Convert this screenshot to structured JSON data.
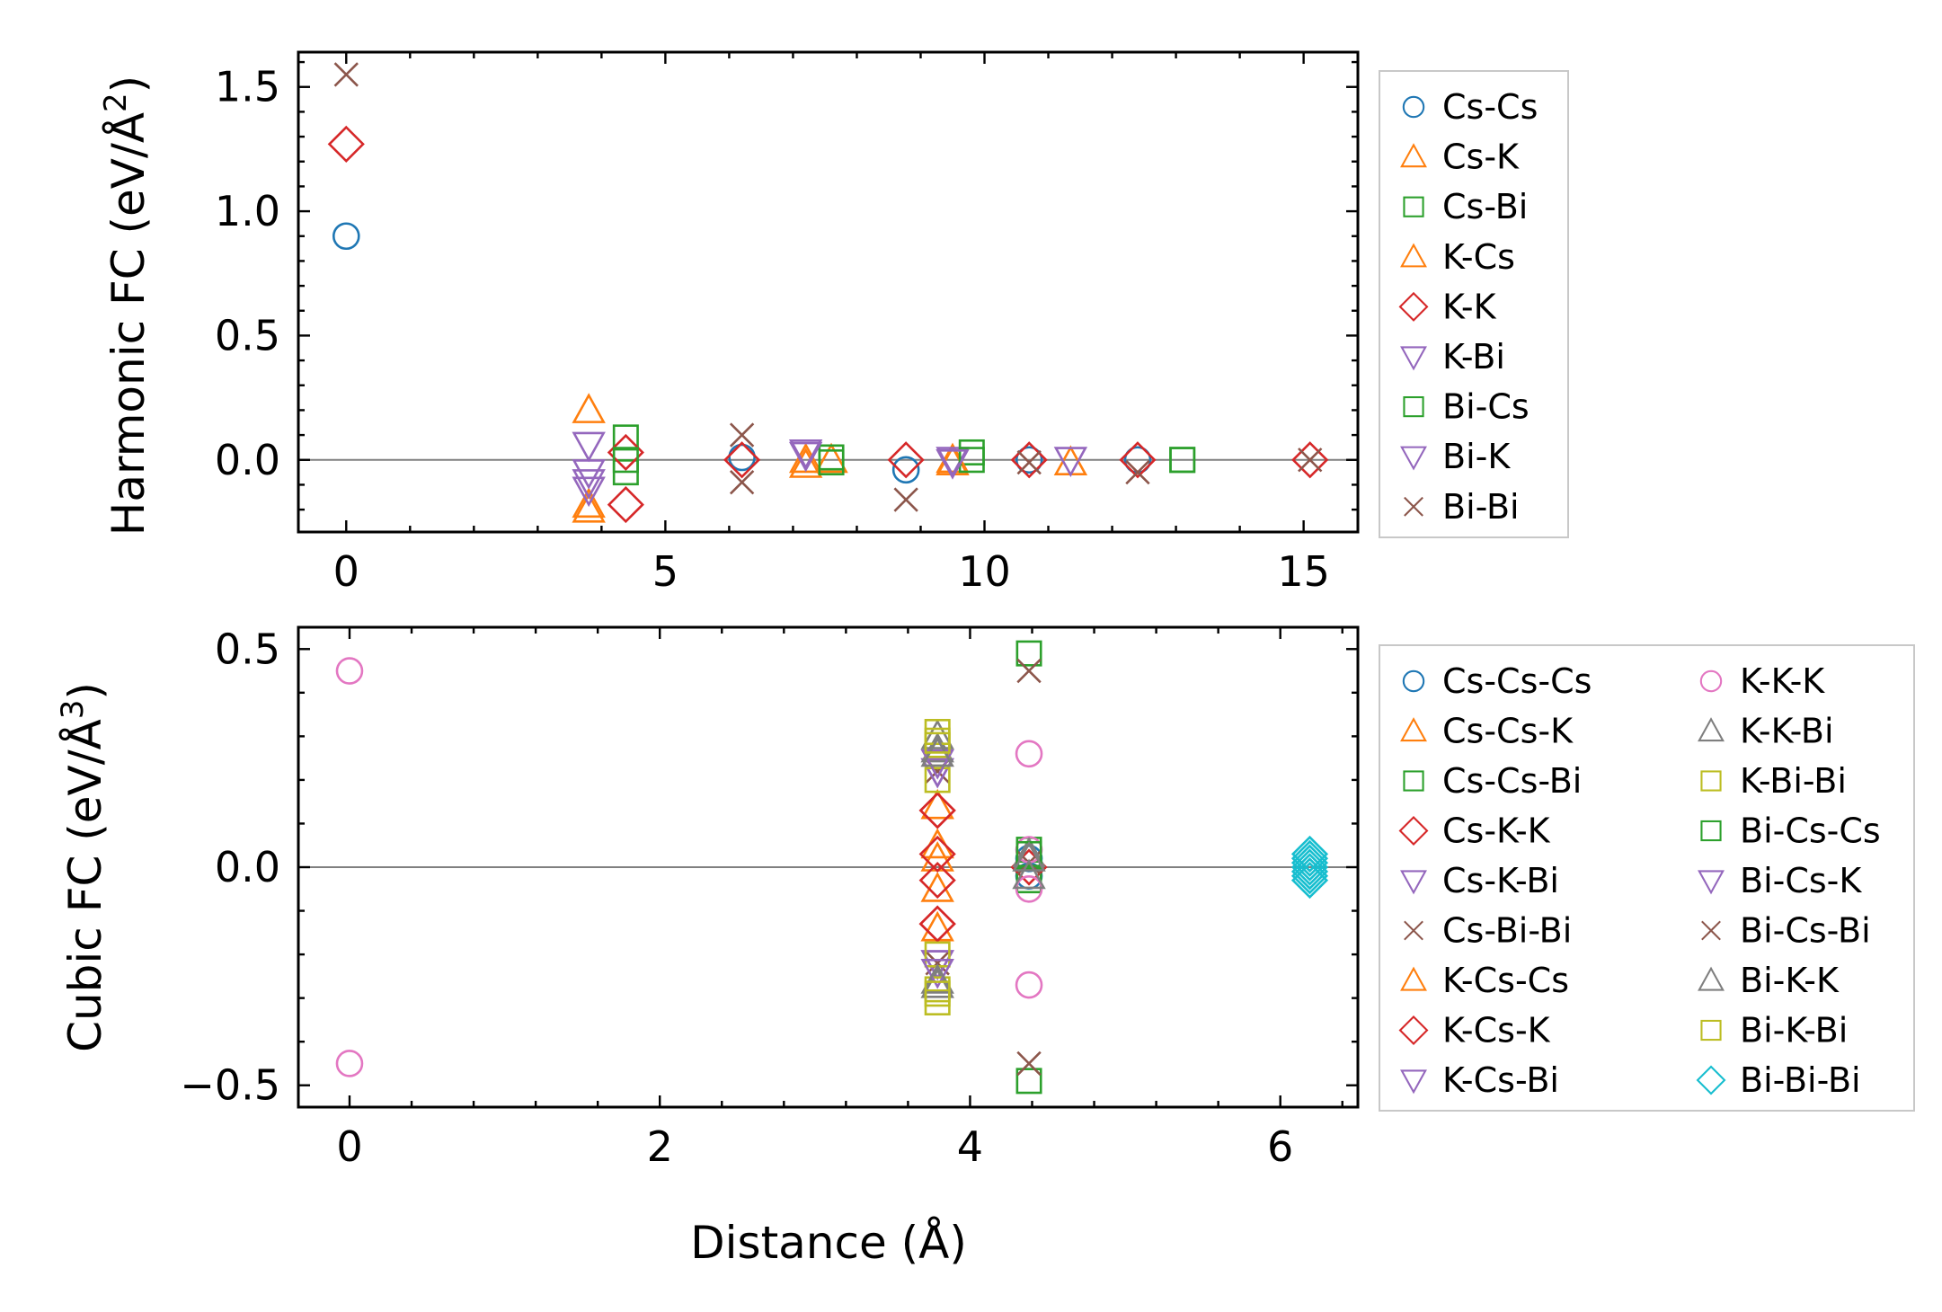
{
  "chart_data": [
    {
      "type": "scatter",
      "ylabel": "Harmonic FC (eV/Å",
      "ylabel_sup": "2",
      "ylabel_end": ")",
      "xlabel": "",
      "xlim": [
        -0.75,
        15.85
      ],
      "ylim": [
        -0.29,
        1.64
      ],
      "xticks": [
        0,
        5,
        10,
        15
      ],
      "xtick_labels": [
        "0",
        "5",
        "10",
        "15"
      ],
      "yticks": [
        0.0,
        0.5,
        1.0,
        1.5
      ],
      "ytick_labels": [
        "0.0",
        "0.5",
        "1.0",
        "1.5"
      ],
      "zero_line": true,
      "legend_position": "outside-right-top",
      "legend_columns": 1,
      "series": [
        {
          "name": "Cs-Cs",
          "color": "#1f77b4",
          "marker": "circle",
          "points": [
            [
              0,
              0.9
            ],
            [
              6.2,
              0.01
            ],
            [
              8.77,
              -0.04
            ],
            [
              10.7,
              0.0
            ],
            [
              12.4,
              0.0
            ]
          ]
        },
        {
          "name": "Cs-K",
          "color": "#ff7f0e",
          "marker": "triangle-up",
          "points": [
            [
              3.8,
              0.2
            ],
            [
              3.8,
              -0.2
            ],
            [
              7.2,
              -0.02
            ],
            [
              7.6,
              0.0
            ],
            [
              9.5,
              -0.01
            ],
            [
              11.35,
              -0.01
            ]
          ]
        },
        {
          "name": "Cs-Bi",
          "color": "#2ca02c",
          "marker": "square",
          "points": [
            [
              4.38,
              0.09
            ],
            [
              4.38,
              -0.05
            ],
            [
              7.6,
              0.01
            ],
            [
              9.8,
              0.03
            ],
            [
              13.1,
              0.0
            ]
          ]
        },
        {
          "name": "K-Cs",
          "color": "#ff7f0e",
          "marker": "triangle-up",
          "points": [
            [
              3.8,
              -0.18
            ],
            [
              7.2,
              0.0
            ],
            [
              9.5,
              0.0
            ]
          ]
        },
        {
          "name": "K-K",
          "color": "#d62728",
          "marker": "diamond",
          "points": [
            [
              0,
              1.27
            ],
            [
              4.38,
              0.03
            ],
            [
              4.38,
              -0.18
            ],
            [
              6.2,
              0.0
            ],
            [
              8.77,
              0.0
            ],
            [
              10.7,
              0.0
            ],
            [
              12.4,
              0.0
            ],
            [
              15.1,
              0.0
            ]
          ]
        },
        {
          "name": "K-Bi",
          "color": "#9467bd",
          "marker": "triangle-down",
          "points": [
            [
              3.8,
              0.06
            ],
            [
              3.8,
              -0.05
            ],
            [
              3.8,
              -0.12
            ],
            [
              7.2,
              0.03
            ],
            [
              9.5,
              0.0
            ],
            [
              11.35,
              0.0
            ]
          ]
        },
        {
          "name": "Bi-Cs",
          "color": "#2ca02c",
          "marker": "square",
          "points": [
            [
              4.38,
              0.0
            ],
            [
              7.6,
              -0.01
            ],
            [
              9.8,
              0.0
            ],
            [
              13.1,
              0.0
            ]
          ]
        },
        {
          "name": "Bi-K",
          "color": "#9467bd",
          "marker": "triangle-down",
          "points": [
            [
              3.8,
              -0.09
            ],
            [
              7.2,
              0.02
            ],
            [
              9.5,
              -0.01
            ]
          ]
        },
        {
          "name": "Bi-Bi",
          "color": "#8c564b",
          "marker": "x",
          "points": [
            [
              0,
              1.55
            ],
            [
              6.2,
              0.1
            ],
            [
              6.2,
              -0.09
            ],
            [
              8.77,
              -0.16
            ],
            [
              10.7,
              -0.01
            ],
            [
              12.4,
              -0.05
            ],
            [
              15.1,
              0.0
            ]
          ]
        }
      ]
    },
    {
      "type": "scatter",
      "ylabel": "Cubic FC (eV/Å",
      "ylabel_sup": "3",
      "ylabel_end": ")",
      "xlabel": "Distance (Å)",
      "xlim": [
        -0.33,
        6.5
      ],
      "ylim": [
        -0.55,
        0.55
      ],
      "xticks": [
        0,
        2,
        4,
        6
      ],
      "xtick_labels": [
        "0",
        "2",
        "4",
        "6"
      ],
      "yticks": [
        -0.5,
        0.0,
        0.5
      ],
      "ytick_labels": [
        "−0.5",
        "0.0",
        "0.5"
      ],
      "zero_line": true,
      "legend_position": "outside-right-top",
      "legend_columns": 2,
      "series": [
        {
          "name": "Cs-Cs-Cs",
          "color": "#1f77b4",
          "marker": "circle",
          "points": [
            [
              4.38,
              0.02
            ],
            [
              4.38,
              -0.02
            ]
          ]
        },
        {
          "name": "Cs-Cs-K",
          "color": "#ff7f0e",
          "marker": "triangle-up",
          "points": [
            [
              3.79,
              0.14
            ],
            [
              3.79,
              -0.14
            ],
            [
              3.79,
              0.05
            ]
          ]
        },
        {
          "name": "Cs-Cs-Bi",
          "color": "#2ca02c",
          "marker": "square",
          "points": [
            [
              4.38,
              0.04
            ],
            [
              4.38,
              -0.03
            ]
          ]
        },
        {
          "name": "Cs-K-K",
          "color": "#d62728",
          "marker": "diamond",
          "points": [
            [
              3.79,
              0.13
            ],
            [
              3.79,
              -0.13
            ],
            [
              4.38,
              0.0
            ]
          ]
        },
        {
          "name": "Cs-K-Bi",
          "color": "#9467bd",
          "marker": "triangle-down",
          "points": [
            [
              3.79,
              0.22
            ],
            [
              3.79,
              -0.22
            ]
          ]
        },
        {
          "name": "Cs-Bi-Bi",
          "color": "#8c564b",
          "marker": "x",
          "points": [
            [
              3.79,
              0.22
            ],
            [
              3.79,
              -0.22
            ],
            [
              4.38,
              0.01
            ]
          ]
        },
        {
          "name": "K-Cs-Cs",
          "color": "#ff7f0e",
          "marker": "triangle-up",
          "points": [
            [
              3.79,
              -0.05
            ],
            [
              3.79,
              0.02
            ]
          ]
        },
        {
          "name": "K-Cs-K",
          "color": "#d62728",
          "marker": "diamond",
          "points": [
            [
              3.79,
              0.03
            ],
            [
              3.79,
              -0.03
            ],
            [
              3.79,
              0.13
            ],
            [
              3.79,
              -0.13
            ]
          ]
        },
        {
          "name": "K-Cs-Bi",
          "color": "#9467bd",
          "marker": "triangle-down",
          "points": [
            [
              3.79,
              0.22
            ],
            [
              3.79,
              -0.22
            ]
          ]
        },
        {
          "name": "K-K-K",
          "color": "#e377c2",
          "marker": "circle",
          "points": [
            [
              0,
              0.45
            ],
            [
              0,
              -0.45
            ],
            [
              4.38,
              0.26
            ],
            [
              4.38,
              -0.27
            ],
            [
              4.38,
              0.04
            ],
            [
              4.38,
              -0.05
            ]
          ]
        },
        {
          "name": "K-K-Bi",
          "color": "#7f7f7f",
          "marker": "triangle-up",
          "points": [
            [
              3.79,
              0.27
            ],
            [
              3.79,
              -0.27
            ],
            [
              3.79,
              0.3
            ],
            [
              4.38,
              0.03
            ]
          ]
        },
        {
          "name": "K-Bi-Bi",
          "color": "#bcbd22",
          "marker": "square",
          "points": [
            [
              3.79,
              0.31
            ],
            [
              3.79,
              -0.31
            ],
            [
              3.79,
              0.2
            ],
            [
              3.79,
              -0.2
            ],
            [
              3.79,
              0.28
            ],
            [
              3.79,
              -0.28
            ]
          ]
        },
        {
          "name": "Bi-Cs-Cs",
          "color": "#2ca02c",
          "marker": "square",
          "points": [
            [
              4.38,
              0.49
            ],
            [
              4.38,
              -0.49
            ],
            [
              4.38,
              0.03
            ]
          ]
        },
        {
          "name": "Bi-Cs-K",
          "color": "#9467bd",
          "marker": "triangle-down",
          "points": [
            [
              3.79,
              0.24
            ],
            [
              3.79,
              -0.24
            ]
          ]
        },
        {
          "name": "Bi-Cs-Bi",
          "color": "#8c564b",
          "marker": "x",
          "points": [
            [
              4.38,
              0.45
            ],
            [
              4.38,
              -0.45
            ]
          ]
        },
        {
          "name": "Bi-K-K",
          "color": "#7f7f7f",
          "marker": "triangle-up",
          "points": [
            [
              3.79,
              0.26
            ],
            [
              3.79,
              -0.26
            ],
            [
              4.38,
              0.02
            ],
            [
              4.38,
              -0.02
            ]
          ]
        },
        {
          "name": "Bi-K-Bi",
          "color": "#bcbd22",
          "marker": "square",
          "points": [
            [
              3.79,
              0.29
            ],
            [
              3.79,
              -0.29
            ]
          ]
        },
        {
          "name": "Bi-Bi-Bi",
          "color": "#17becf",
          "marker": "diamond",
          "points": [
            [
              6.19,
              0.03
            ],
            [
              6.19,
              0.02
            ],
            [
              6.19,
              0.01
            ],
            [
              6.19,
              0.0
            ],
            [
              6.19,
              -0.01
            ],
            [
              6.19,
              -0.02
            ],
            [
              6.19,
              -0.03
            ]
          ]
        }
      ]
    }
  ]
}
